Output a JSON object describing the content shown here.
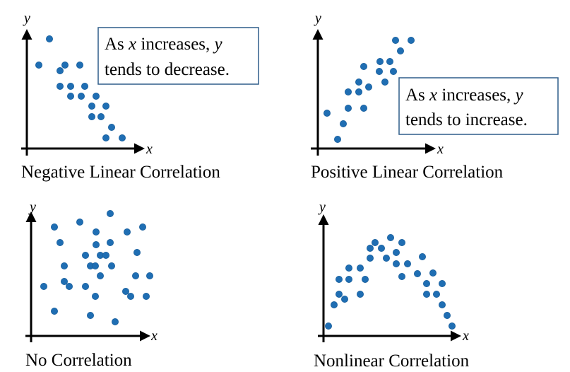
{
  "chart_data": [
    {
      "type": "scatter",
      "title": "Negative Linear Correlation",
      "xlabel": "x",
      "ylabel": "y",
      "annotation": {
        "line1": "increases,",
        "line2": "tends to decrease.",
        "prefix": "As",
        "var1": "x",
        "var2": "y"
      },
      "points": [
        [
          70,
          55
        ],
        [
          55,
          92
        ],
        [
          92,
          92
        ],
        [
          113,
          92
        ],
        [
          85,
          100
        ],
        [
          85,
          122
        ],
        [
          100,
          122
        ],
        [
          120,
          122
        ],
        [
          100,
          136
        ],
        [
          115,
          136
        ],
        [
          136,
          136
        ],
        [
          130,
          150
        ],
        [
          150,
          150
        ],
        [
          130,
          165
        ],
        [
          143,
          165
        ],
        [
          158,
          180
        ],
        [
          150,
          195
        ],
        [
          173,
          195
        ]
      ]
    },
    {
      "type": "scatter",
      "title": "Positive Linear Correlation",
      "xlabel": "x",
      "ylabel": "y",
      "annotation": {
        "line1": "increases,",
        "line2": "tends to increase.",
        "prefix": "As",
        "var1": "x",
        "var2": "y"
      },
      "points": [
        [
          560,
          57
        ],
        [
          582,
          57
        ],
        [
          567,
          72
        ],
        [
          538,
          87
        ],
        [
          552,
          87
        ],
        [
          515,
          94
        ],
        [
          537,
          101
        ],
        [
          557,
          101
        ],
        [
          508,
          116
        ],
        [
          522,
          123
        ],
        [
          545,
          116
        ],
        [
          493,
          130
        ],
        [
          508,
          130
        ],
        [
          463,
          160
        ],
        [
          493,
          153
        ],
        [
          515,
          153
        ],
        [
          486,
          175
        ],
        [
          478,
          197
        ]
      ]
    },
    {
      "type": "scatter",
      "title": "No Correlation",
      "xlabel": "x",
      "ylabel": "y",
      "points": [
        [
          156,
          302
        ],
        [
          113,
          314
        ],
        [
          77,
          321
        ],
        [
          136,
          328
        ],
        [
          180,
          328
        ],
        [
          202,
          321
        ],
        [
          85,
          343
        ],
        [
          136,
          346
        ],
        [
          156,
          343
        ],
        [
          121,
          361
        ],
        [
          142,
          361
        ],
        [
          150,
          361
        ],
        [
          194,
          357
        ],
        [
          91,
          376
        ],
        [
          128,
          376
        ],
        [
          135,
          376
        ],
        [
          158,
          376
        ],
        [
          142,
          390
        ],
        [
          192,
          390
        ],
        [
          212,
          390
        ],
        [
          91,
          398
        ],
        [
          98,
          405
        ],
        [
          62,
          405
        ],
        [
          121,
          405
        ],
        [
          178,
          412
        ],
        [
          185,
          419
        ],
        [
          207,
          419
        ],
        [
          135,
          419
        ],
        [
          77,
          440
        ],
        [
          128,
          446
        ],
        [
          163,
          455
        ]
      ]
    },
    {
      "type": "scatter",
      "title": "Nonlinear Correlation",
      "xlabel": "x",
      "ylabel": "y",
      "points": [
        [
          553,
          336
        ],
        [
          531,
          343
        ],
        [
          569,
          343
        ],
        [
          524,
          351
        ],
        [
          540,
          351
        ],
        [
          561,
          357
        ],
        [
          524,
          365
        ],
        [
          547,
          365
        ],
        [
          598,
          363
        ],
        [
          494,
          379
        ],
        [
          510,
          379
        ],
        [
          561,
          373
        ],
        [
          577,
          373
        ],
        [
          591,
          387
        ],
        [
          613,
          386
        ],
        [
          480,
          395
        ],
        [
          494,
          395
        ],
        [
          569,
          391
        ],
        [
          517,
          395
        ],
        [
          604,
          401
        ],
        [
          626,
          401
        ],
        [
          480,
          416
        ],
        [
          510,
          416
        ],
        [
          604,
          416
        ],
        [
          618,
          416
        ],
        [
          488,
          423
        ],
        [
          473,
          431
        ],
        [
          626,
          431
        ],
        [
          633,
          446
        ],
        [
          465,
          461
        ],
        [
          640,
          461
        ]
      ]
    }
  ]
}
